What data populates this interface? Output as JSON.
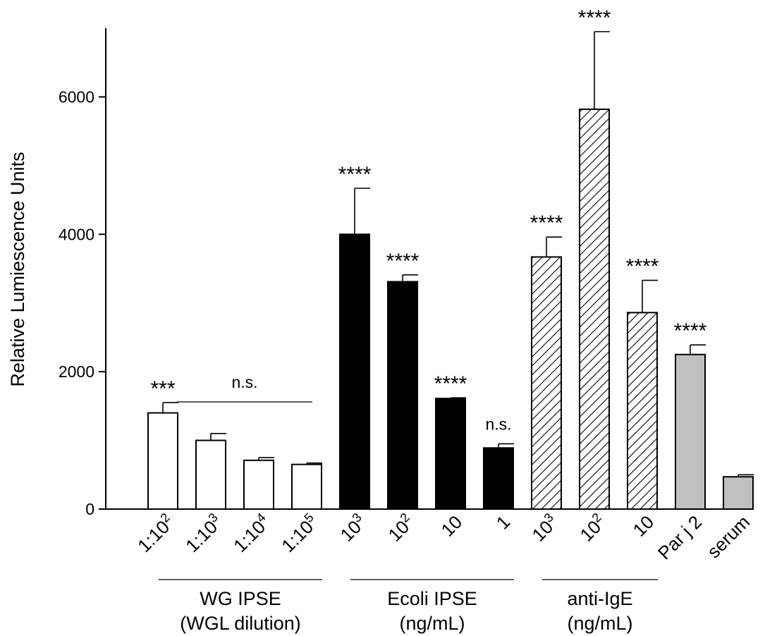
{
  "chart_data": {
    "type": "bar",
    "ylabel": "Relative Lumiescence Units",
    "ylim": [
      0,
      7000
    ],
    "yticks": [
      0,
      2000,
      4000,
      6000
    ],
    "categories": [
      {
        "base": "1:10",
        "sup": "2"
      },
      {
        "base": "1:10",
        "sup": "3"
      },
      {
        "base": "1:10",
        "sup": "4"
      },
      {
        "base": "1:10",
        "sup": "5"
      },
      {
        "base": "10",
        "sup": "3"
      },
      {
        "base": "10",
        "sup": "2"
      },
      {
        "base": "10",
        "sup": ""
      },
      {
        "base": "1",
        "sup": ""
      },
      {
        "base": "10",
        "sup": "3"
      },
      {
        "base": "10",
        "sup": "2"
      },
      {
        "base": "10",
        "sup": ""
      },
      {
        "base": "Par j 2",
        "sup": ""
      },
      {
        "base": "serum",
        "sup": ""
      }
    ],
    "values": [
      1400,
      1000,
      710,
      650,
      4000,
      3310,
      1610,
      890,
      3670,
      5820,
      2860,
      2250,
      470
    ],
    "errors": [
      150,
      100,
      40,
      20,
      670,
      100,
      10,
      60,
      290,
      1130,
      470,
      140,
      30
    ],
    "fills": [
      "white",
      "white",
      "white",
      "white",
      "black",
      "black",
      "black",
      "black",
      "hatch",
      "hatch",
      "hatch",
      "gray",
      "gray"
    ],
    "significance": [
      "***",
      "",
      "",
      "",
      "****",
      "****",
      "****",
      "n.s.",
      "****",
      "****",
      "****",
      "****",
      ""
    ],
    "bracket_annotation": {
      "label": "n.s.",
      "from": 1,
      "to": 3
    },
    "groups": [
      {
        "line1": "WG IPSE",
        "line2": "(WGL dilution)",
        "from": 0,
        "to": 3
      },
      {
        "line1": "Ecoli IPSE",
        "line2": "(ng/mL)",
        "from": 4,
        "to": 7
      },
      {
        "line1": "anti-IgE",
        "line2": "(ng/mL)",
        "from": 8,
        "to": 10
      }
    ],
    "colors": {
      "black": "#000000",
      "gray": "#c0c0c0",
      "white": "#ffffff",
      "stroke": "#000000"
    },
    "grid": false,
    "legend": "none"
  }
}
